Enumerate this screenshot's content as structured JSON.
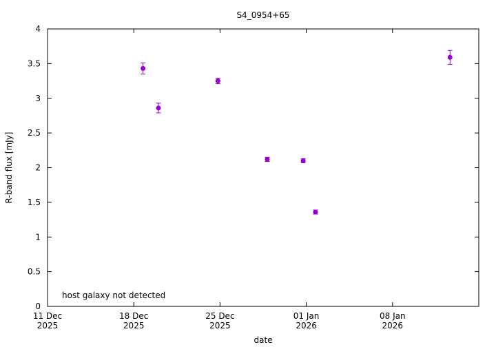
{
  "chart_data": {
    "type": "scatter",
    "title": "S4_0954+65",
    "xlabel": "date",
    "ylabel": "R-band flux [mJy]",
    "annotation": "host galaxy not detected",
    "xlim": [
      "2025-12-11",
      "2026-01-15"
    ],
    "ylim": [
      0,
      4
    ],
    "yticks": [
      0,
      0.5,
      1,
      1.5,
      2,
      2.5,
      3,
      3.5,
      4
    ],
    "ytick_labels": [
      "0",
      "0.5",
      "1",
      "1.5",
      "2",
      "2.5",
      "3",
      "3.5",
      "4"
    ],
    "xticks": [
      {
        "date": "2025-12-11",
        "line1": "11 Dec",
        "line2": "2025"
      },
      {
        "date": "2025-12-18",
        "line1": "18 Dec",
        "line2": "2025"
      },
      {
        "date": "2025-12-25",
        "line1": "25 Dec",
        "line2": "2025"
      },
      {
        "date": "2026-01-01",
        "line1": "01 Jan",
        "line2": "2026"
      },
      {
        "date": "2026-01-08",
        "line1": "08 Jan",
        "line2": "2026"
      }
    ],
    "grid": false,
    "series": [
      {
        "color": "#9400d3",
        "points": [
          {
            "x": "2025-12-18T18:00",
            "y": 3.43,
            "err": 0.08
          },
          {
            "x": "2025-12-20T00:00",
            "y": 2.86,
            "err": 0.07
          },
          {
            "x": "2025-12-24T20:00",
            "y": 3.25,
            "err": 0.04
          },
          {
            "x": "2025-12-28T20:00",
            "y": 2.12,
            "err": 0.03
          },
          {
            "x": "2025-12-31T18:00",
            "y": 2.1,
            "err": 0.03
          },
          {
            "x": "2026-01-01T18:00",
            "y": 1.36,
            "err": 0.03
          },
          {
            "x": "2026-01-12T16:00",
            "y": 3.59,
            "err": 0.1
          }
        ]
      }
    ]
  }
}
